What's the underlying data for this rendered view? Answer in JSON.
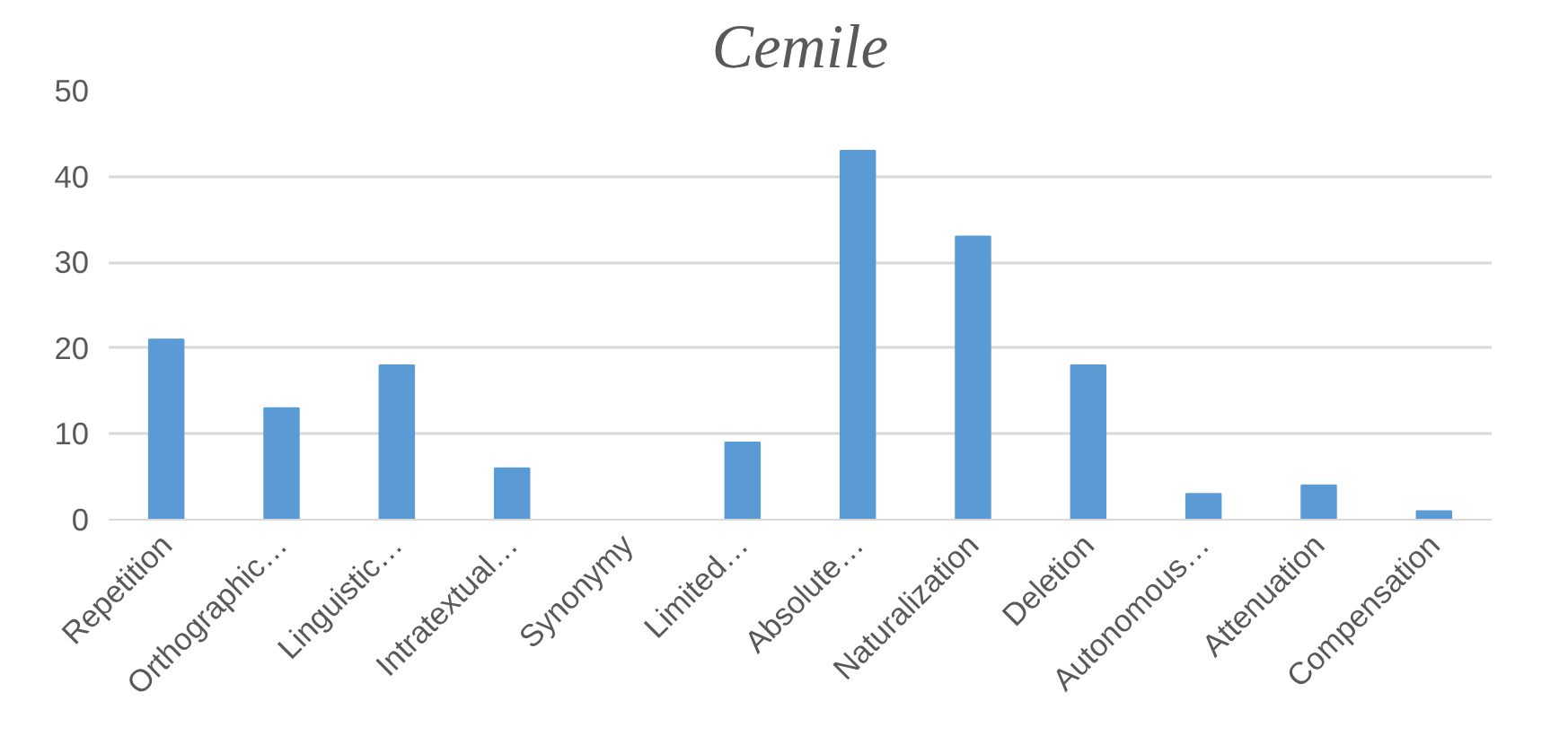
{
  "chart_data": {
    "type": "bar",
    "title": "Cemile",
    "categories": [
      "Repetition",
      "Orthographic…",
      "Linguistic…",
      "Intratextual…",
      "Synonymy",
      "Limited…",
      "Absolute…",
      "Naturalization",
      "Deletion",
      "Autonomous…",
      "Attenuation",
      "Compensation"
    ],
    "values": [
      21,
      13,
      18,
      6,
      0,
      9,
      43,
      33,
      18,
      3,
      4,
      1
    ],
    "color": "#5b9bd5",
    "ylim": [
      0,
      50
    ],
    "yticks": [
      0,
      10,
      20,
      30,
      40,
      50
    ],
    "grid": "y"
  }
}
